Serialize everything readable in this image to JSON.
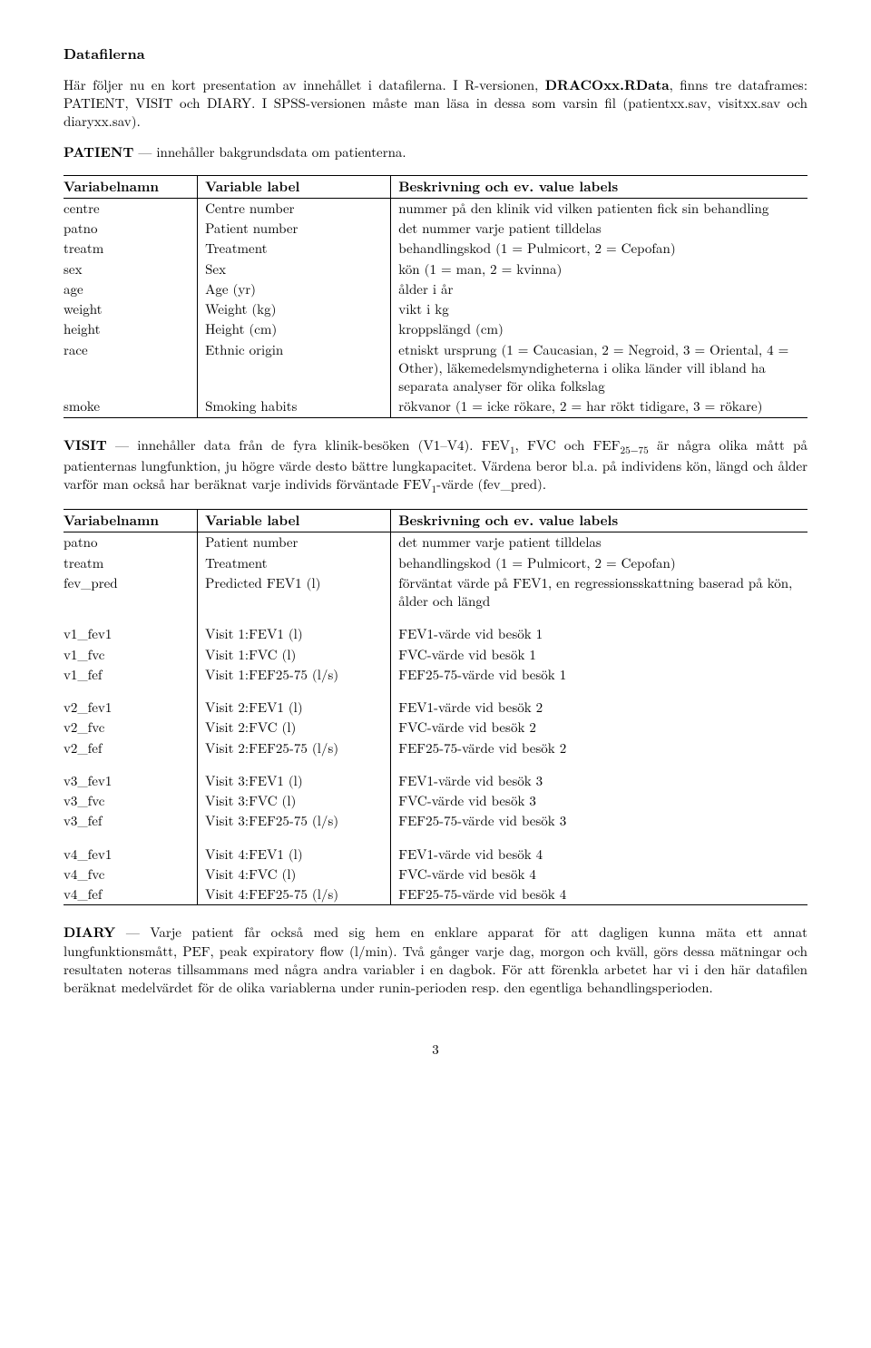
{
  "heading": "Datafilerna",
  "intro_html": "Här följer nu en kort presentation av innehållet i datafilerna. I R-versionen, <b>DRACOxx.RData</b>, finns tre dataframes: PATIENT, VISIT och DIARY. I SPSS-versionen måste man läsa in dessa som varsin fil (patientxx.sav, visitxx.sav och diaryxx.sav).",
  "patient_intro_html": "<b>PATIENT</b> — innehåller bakgrundsdata om patienterna.",
  "table_headers": {
    "c1": "Variabelnamn",
    "c2": "Variable label",
    "c3": "Beskrivning och ev. value labels"
  },
  "patient_rows": [
    {
      "c1": "centre",
      "c2": "Centre number",
      "c3": "nummer på den klinik vid vilken patienten fick sin behandling"
    },
    {
      "c1": "patno",
      "c2": "Patient number",
      "c3": "det nummer varje patient tilldelas"
    },
    {
      "c1": "treatm",
      "c2": "Treatment",
      "c3": "behandlingskod (1 = Pulmicort, 2 = Cepofan)"
    },
    {
      "c1": "sex",
      "c2": "Sex",
      "c3": "kön (1 = man, 2 = kvinna)"
    },
    {
      "c1": "age",
      "c2": "Age (yr)",
      "c3": "ålder i år"
    },
    {
      "c1": "weight",
      "c2": "Weight (kg)",
      "c3": "vikt i kg"
    },
    {
      "c1": "height",
      "c2": "Height (cm)",
      "c3": "kroppslängd (cm)"
    },
    {
      "c1": "race",
      "c2": "Ethnic origin",
      "c3": "etniskt ursprung (1 = Caucasian, 2 = Negroid, 3 = Oriental, 4 = Other), läkemedelsmyndigheterna i olika länder vill ibland ha separata analyser för olika folkslag"
    },
    {
      "c1": "smoke",
      "c2": "Smoking habits",
      "c3": "rökvanor (1 = icke rökare, 2 = har rökt tidigare, 3 = rökare)"
    }
  ],
  "visit_intro_html": "<b>VISIT</b> — innehåller data från de fyra klinik-besöken (V1–V4). FEV<sub>1</sub>, FVC och FEF<sub>25−75</sub> är några olika mått på patienternas lungfunktion, ju högre värde desto bättre lungkapacitet. Värdena beror bl.a. på individens kön, längd och ålder varför man också har beräknat varje individs förväntade FEV<sub>1</sub>-värde (fev_pred).",
  "visit_groups": [
    [
      {
        "c1": "patno",
        "c2": "Patient number",
        "c3": "det nummer varje patient tilldelas"
      },
      {
        "c1": "treatm",
        "c2": "Treatment",
        "c3": "behandlingskod (1 = Pulmicort, 2 = Cepofan)"
      },
      {
        "c1": "fev_pred",
        "c2": "Predicted FEV1 (l)",
        "c3": "förväntat värde på FEV1, en regressionsskattning baserad på kön, ålder och längd"
      }
    ],
    [
      {
        "c1": "v1_fev1",
        "c2": "Visit 1:FEV1 (l)",
        "c3": "FEV1-värde vid besök 1"
      },
      {
        "c1": "v1_fvc",
        "c2": "Visit 1:FVC (l)",
        "c3": "FVC-värde vid besök 1"
      },
      {
        "c1": "v1_fef",
        "c2": "Visit 1:FEF25-75 (l/s)",
        "c3": "FEF25-75-värde vid besök 1"
      }
    ],
    [
      {
        "c1": "v2_fev1",
        "c2": "Visit 2:FEV1 (l)",
        "c3": "FEV1-värde vid besök 2"
      },
      {
        "c1": "v2_fvc",
        "c2": "Visit 2:FVC (l)",
        "c3": "FVC-värde vid besök 2"
      },
      {
        "c1": "v2_fef",
        "c2": "Visit 2:FEF25-75 (l/s)",
        "c3": "FEF25-75-värde vid besök 2"
      }
    ],
    [
      {
        "c1": "v3_fev1",
        "c2": "Visit 3:FEV1 (l)",
        "c3": "FEV1-värde vid besök 3"
      },
      {
        "c1": "v3_fvc",
        "c2": "Visit 3:FVC (l)",
        "c3": "FVC-värde vid besök 3"
      },
      {
        "c1": "v3_fef",
        "c2": "Visit 3:FEF25-75 (l/s)",
        "c3": "FEF25-75-värde vid besök 3"
      }
    ],
    [
      {
        "c1": "v4_fev1",
        "c2": "Visit 4:FEV1 (l)",
        "c3": "FEV1-värde vid besök 4"
      },
      {
        "c1": "v4_fvc",
        "c2": "Visit 4:FVC (l)",
        "c3": "FVC-värde vid besök 4"
      },
      {
        "c1": "v4_fef",
        "c2": "Visit 4:FEF25-75 (l/s)",
        "c3": "FEF25-75-värde vid besök 4"
      }
    ]
  ],
  "diary_intro_html": "<b>DIARY</b> — Varje patient får också med sig hem en enklare apparat för att dagligen kunna mäta ett annat lungfunktionsmått, PEF, peak expiratory flow (l/min). Två gånger varje dag, morgon och kväll, görs dessa mätningar och resultaten noteras tillsammans med några andra variabler i en dagbok. För att förenkla arbetet har vi i den här datafilen beräknat medelvärdet för de olika variablerna under runin-perioden resp. den egentliga behandlingsperioden.",
  "page_number": "3"
}
